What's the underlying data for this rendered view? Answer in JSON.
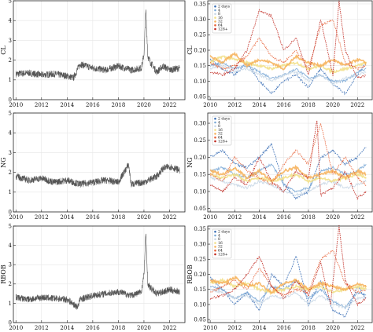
{
  "chart_data": [
    {
      "id": "cl-price",
      "type": "line",
      "ylabel": "CL",
      "xlim": [
        2009.8,
        2023.2
      ],
      "ylim": [
        0,
        5
      ],
      "xticks": [
        2010,
        2012,
        2014,
        2016,
        2018,
        2020,
        2022
      ],
      "yticks": [
        0,
        1,
        2,
        3,
        4,
        5
      ],
      "x": [
        2010,
        2011,
        2012,
        2013,
        2014,
        2014.5,
        2015,
        2016,
        2017,
        2018,
        2019,
        2019.8,
        2020.0,
        2020.15,
        2020.3,
        2020.5,
        2021,
        2021.5,
        2022,
        2022.8
      ],
      "y": [
        1.3,
        1.35,
        1.25,
        1.3,
        1.2,
        1.1,
        1.8,
        1.6,
        1.5,
        1.7,
        1.5,
        1.6,
        2.3,
        4.5,
        2.2,
        1.9,
        1.4,
        1.7,
        1.5,
        1.6
      ],
      "series_color": "#555555"
    },
    {
      "id": "cl-spectrum",
      "type": "line",
      "ylabel": "CL",
      "xlim": [
        2009.8,
        2023.2
      ],
      "ylim": [
        0.04,
        0.36
      ],
      "xticks": [
        2010,
        2012,
        2014,
        2016,
        2018,
        2020,
        2022
      ],
      "yticks": [
        0.05,
        0.1,
        0.15,
        0.2,
        0.25,
        0.3,
        0.35
      ],
      "legend": [
        "2 days",
        "4",
        "8",
        "16",
        "32",
        "64",
        "128+"
      ],
      "series": [
        {
          "name": "2 days",
          "color": "#3b6fb6",
          "x": [
            2010,
            2011,
            2012,
            2013,
            2014,
            2015,
            2016,
            2017,
            2018,
            2019,
            2020,
            2021,
            2022,
            2022.7
          ],
          "values": [
            0.17,
            0.14,
            0.12,
            0.16,
            0.1,
            0.06,
            0.1,
            0.12,
            0.08,
            0.14,
            0.09,
            0.06,
            0.12,
            0.16
          ]
        },
        {
          "name": "4",
          "color": "#7ba9d6",
          "x": [
            2010,
            2011,
            2012,
            2013,
            2014,
            2015,
            2016,
            2017,
            2018,
            2019,
            2020,
            2021,
            2022,
            2022.7
          ],
          "values": [
            0.15,
            0.16,
            0.14,
            0.15,
            0.13,
            0.11,
            0.12,
            0.14,
            0.11,
            0.12,
            0.1,
            0.1,
            0.13,
            0.14
          ]
        },
        {
          "name": "8",
          "color": "#c8d7e6",
          "x": [
            2010,
            2011,
            2012,
            2013,
            2014,
            2015,
            2016,
            2017,
            2018,
            2019,
            2020,
            2021,
            2022,
            2022.7
          ],
          "values": [
            0.14,
            0.15,
            0.13,
            0.14,
            0.12,
            0.1,
            0.12,
            0.13,
            0.1,
            0.12,
            0.09,
            0.11,
            0.12,
            0.13
          ]
        },
        {
          "name": "16",
          "color": "#f2e08a",
          "x": [
            2010,
            2011,
            2012,
            2013,
            2014,
            2015,
            2016,
            2017,
            2018,
            2019,
            2020,
            2021,
            2022,
            2022.7
          ],
          "values": [
            0.16,
            0.18,
            0.17,
            0.16,
            0.15,
            0.14,
            0.15,
            0.16,
            0.14,
            0.15,
            0.13,
            0.14,
            0.15,
            0.16
          ]
        },
        {
          "name": "32",
          "color": "#f6b25c",
          "x": [
            2010,
            2011,
            2012,
            2013,
            2014,
            2015,
            2016,
            2017,
            2018,
            2019,
            2020,
            2021,
            2022,
            2022.7
          ],
          "values": [
            0.18,
            0.16,
            0.19,
            0.15,
            0.17,
            0.16,
            0.14,
            0.18,
            0.16,
            0.15,
            0.17,
            0.15,
            0.17,
            0.16
          ]
        },
        {
          "name": "64",
          "color": "#e8643a",
          "x": [
            2010,
            2011,
            2012,
            2013,
            2014,
            2015,
            2016,
            2017,
            2018,
            2019,
            2020,
            2021,
            2022,
            2022.7
          ],
          "values": [
            0.16,
            0.14,
            0.15,
            0.18,
            0.24,
            0.18,
            0.16,
            0.2,
            0.14,
            0.28,
            0.3,
            0.16,
            0.14,
            0.15
          ]
        },
        {
          "name": "128+",
          "color": "#c0281f",
          "x": [
            2010,
            2011,
            2012,
            2013,
            2014,
            2015,
            2016,
            2017,
            2018,
            2019,
            2020,
            2020.5,
            2021,
            2022,
            2022.7
          ],
          "values": [
            0.13,
            0.12,
            0.14,
            0.2,
            0.33,
            0.31,
            0.2,
            0.24,
            0.12,
            0.3,
            0.12,
            0.36,
            0.2,
            0.11,
            0.12
          ]
        }
      ]
    },
    {
      "id": "ng-price",
      "type": "line",
      "ylabel": "NG",
      "xlim": [
        2009.8,
        2023.2
      ],
      "ylim": [
        0,
        5
      ],
      "xticks": [
        2010,
        2012,
        2014,
        2016,
        2018,
        2020,
        2022
      ],
      "yticks": [
        0,
        1,
        2,
        3,
        4,
        5
      ],
      "x": [
        2010,
        2011,
        2012,
        2013,
        2014,
        2015,
        2016,
        2017,
        2018,
        2018.8,
        2019,
        2020,
        2021,
        2021.5,
        2022,
        2022.8
      ],
      "y": [
        1.8,
        1.6,
        1.7,
        1.5,
        1.6,
        1.4,
        1.5,
        1.6,
        1.5,
        2.4,
        1.4,
        1.5,
        1.8,
        2.2,
        2.3,
        2.1
      ],
      "series_color": "#555555"
    },
    {
      "id": "ng-spectrum",
      "type": "line",
      "ylabel": "NG",
      "xlim": [
        2009.8,
        2023.2
      ],
      "ylim": [
        0.04,
        0.33
      ],
      "xticks": [
        2010,
        2012,
        2014,
        2016,
        2018,
        2020,
        2022
      ],
      "yticks": [
        0.05,
        0.1,
        0.15,
        0.2,
        0.25,
        0.3
      ],
      "legend": [
        "2 days",
        "4",
        "8",
        "16",
        "32",
        "64",
        "128+"
      ],
      "series": [
        {
          "name": "2 days",
          "color": "#3b6fb6",
          "x": [
            2010,
            2011,
            2012,
            2013,
            2014,
            2015,
            2016,
            2017,
            2018,
            2019,
            2020,
            2021,
            2022,
            2022.7
          ],
          "values": [
            0.2,
            0.22,
            0.18,
            0.17,
            0.2,
            0.24,
            0.12,
            0.08,
            0.1,
            0.2,
            0.22,
            0.18,
            0.2,
            0.23
          ]
        },
        {
          "name": "4",
          "color": "#7ba9d6",
          "x": [
            2010,
            2011,
            2012,
            2013,
            2014,
            2015,
            2016,
            2017,
            2018,
            2019,
            2020,
            2021,
            2022,
            2022.7
          ],
          "values": [
            0.16,
            0.17,
            0.15,
            0.14,
            0.16,
            0.18,
            0.12,
            0.1,
            0.11,
            0.16,
            0.17,
            0.15,
            0.16,
            0.18
          ]
        },
        {
          "name": "8",
          "color": "#c8d7e6",
          "x": [
            2010,
            2011,
            2012,
            2013,
            2014,
            2015,
            2016,
            2017,
            2018,
            2019,
            2020,
            2021,
            2022,
            2022.7
          ],
          "values": [
            0.14,
            0.13,
            0.12,
            0.11,
            0.13,
            0.12,
            0.1,
            0.09,
            0.1,
            0.12,
            0.13,
            0.11,
            0.12,
            0.13
          ]
        },
        {
          "name": "16",
          "color": "#f2e08a",
          "x": [
            2010,
            2011,
            2012,
            2013,
            2014,
            2015,
            2016,
            2017,
            2018,
            2019,
            2020,
            2021,
            2022,
            2022.7
          ],
          "values": [
            0.15,
            0.14,
            0.15,
            0.13,
            0.14,
            0.13,
            0.14,
            0.15,
            0.13,
            0.14,
            0.13,
            0.14,
            0.15,
            0.14
          ]
        },
        {
          "name": "32",
          "color": "#f6b25c",
          "x": [
            2010,
            2011,
            2012,
            2013,
            2014,
            2015,
            2016,
            2017,
            2018,
            2019,
            2020,
            2021,
            2022,
            2022.7
          ],
          "values": [
            0.16,
            0.15,
            0.17,
            0.14,
            0.16,
            0.13,
            0.16,
            0.17,
            0.14,
            0.15,
            0.16,
            0.14,
            0.16,
            0.15
          ]
        },
        {
          "name": "64",
          "color": "#e8643a",
          "x": [
            2010,
            2011,
            2012,
            2013,
            2014,
            2015,
            2016,
            2017,
            2018,
            2019,
            2020,
            2021,
            2022,
            2022.7
          ],
          "values": [
            0.15,
            0.13,
            0.2,
            0.16,
            0.14,
            0.12,
            0.18,
            0.22,
            0.18,
            0.3,
            0.15,
            0.2,
            0.14,
            0.12
          ]
        },
        {
          "name": "128+",
          "color": "#c0281f",
          "x": [
            2010,
            2011,
            2012,
            2013,
            2014,
            2015,
            2016,
            2017,
            2018,
            2018.7,
            2019,
            2020,
            2021,
            2022,
            2022.7
          ],
          "values": [
            0.12,
            0.1,
            0.14,
            0.12,
            0.2,
            0.13,
            0.1,
            0.16,
            0.14,
            0.31,
            0.09,
            0.11,
            0.16,
            0.08,
            0.1
          ]
        }
      ]
    },
    {
      "id": "rbob-price",
      "type": "line",
      "ylabel": "RBOB",
      "xlim": [
        2009.8,
        2023.2
      ],
      "ylim": [
        0,
        5
      ],
      "xticks": [
        2010,
        2012,
        2014,
        2016,
        2018,
        2020,
        2022
      ],
      "yticks": [
        0,
        1,
        2,
        3,
        4,
        5
      ],
      "x": [
        2010,
        2011,
        2012,
        2013,
        2014,
        2014.8,
        2015,
        2016,
        2017,
        2018,
        2019,
        2019.8,
        2020.0,
        2020.15,
        2020.3,
        2020.5,
        2021,
        2022,
        2022.8
      ],
      "y": [
        1.3,
        1.2,
        1.3,
        1.25,
        1.2,
        0.8,
        1.2,
        1.4,
        1.5,
        1.6,
        1.4,
        1.6,
        2.5,
        4.6,
        2.0,
        1.8,
        1.5,
        1.7,
        1.6
      ],
      "series_color": "#555555"
    },
    {
      "id": "rbob-spectrum",
      "type": "line",
      "ylabel": "RBOB",
      "xlim": [
        2009.8,
        2023.2
      ],
      "ylim": [
        0.04,
        0.36
      ],
      "xticks": [
        2010,
        2012,
        2014,
        2016,
        2018,
        2020,
        2022
      ],
      "yticks": [
        0.05,
        0.1,
        0.15,
        0.2,
        0.25,
        0.3,
        0.35
      ],
      "legend": [
        "2 days",
        "4",
        "8",
        "16",
        "32",
        "64",
        "128+"
      ],
      "series": [
        {
          "name": "2 days",
          "color": "#3b6fb6",
          "x": [
            2010,
            2011,
            2012,
            2013,
            2014,
            2015,
            2016,
            2017,
            2018,
            2019,
            2020,
            2021,
            2022,
            2022.7
          ],
          "values": [
            0.19,
            0.15,
            0.1,
            0.14,
            0.08,
            0.2,
            0.16,
            0.26,
            0.1,
            0.18,
            0.08,
            0.06,
            0.16,
            0.12
          ]
        },
        {
          "name": "4",
          "color": "#7ba9d6",
          "x": [
            2010,
            2011,
            2012,
            2013,
            2014,
            2015,
            2016,
            2017,
            2018,
            2019,
            2020,
            2021,
            2022,
            2022.7
          ],
          "values": [
            0.16,
            0.15,
            0.12,
            0.14,
            0.11,
            0.16,
            0.15,
            0.18,
            0.12,
            0.15,
            0.11,
            0.09,
            0.14,
            0.13
          ]
        },
        {
          "name": "8",
          "color": "#c8d7e6",
          "x": [
            2010,
            2011,
            2012,
            2013,
            2014,
            2015,
            2016,
            2017,
            2018,
            2019,
            2020,
            2021,
            2022,
            2022.7
          ],
          "values": [
            0.15,
            0.14,
            0.12,
            0.13,
            0.1,
            0.13,
            0.12,
            0.14,
            0.1,
            0.13,
            0.1,
            0.09,
            0.12,
            0.12
          ]
        },
        {
          "name": "16",
          "color": "#f2e08a",
          "x": [
            2010,
            2011,
            2012,
            2013,
            2014,
            2015,
            2016,
            2017,
            2018,
            2019,
            2020,
            2021,
            2022,
            2022.7
          ],
          "values": [
            0.17,
            0.18,
            0.16,
            0.17,
            0.15,
            0.14,
            0.15,
            0.16,
            0.15,
            0.16,
            0.14,
            0.15,
            0.16,
            0.15
          ]
        },
        {
          "name": "32",
          "color": "#f6b25c",
          "x": [
            2010,
            2011,
            2012,
            2013,
            2014,
            2015,
            2016,
            2017,
            2018,
            2019,
            2020,
            2021,
            2022,
            2022.7
          ],
          "values": [
            0.18,
            0.17,
            0.19,
            0.16,
            0.17,
            0.14,
            0.17,
            0.18,
            0.15,
            0.17,
            0.16,
            0.15,
            0.17,
            0.16
          ]
        },
        {
          "name": "64",
          "color": "#e8643a",
          "x": [
            2010,
            2011,
            2012,
            2013,
            2014,
            2015,
            2016,
            2017,
            2018,
            2019,
            2020,
            2021,
            2022,
            2022.7
          ],
          "values": [
            0.14,
            0.16,
            0.18,
            0.15,
            0.22,
            0.16,
            0.13,
            0.15,
            0.14,
            0.25,
            0.28,
            0.17,
            0.14,
            0.15
          ]
        },
        {
          "name": "128+",
          "color": "#c0281f",
          "x": [
            2010,
            2011,
            2012,
            2013,
            2014,
            2015,
            2016,
            2017,
            2018,
            2019,
            2019.8,
            2020.5,
            2021,
            2022,
            2022.7
          ],
          "values": [
            0.12,
            0.13,
            0.15,
            0.2,
            0.26,
            0.16,
            0.12,
            0.18,
            0.13,
            0.24,
            0.1,
            0.36,
            0.18,
            0.1,
            0.12
          ]
        }
      ]
    }
  ]
}
